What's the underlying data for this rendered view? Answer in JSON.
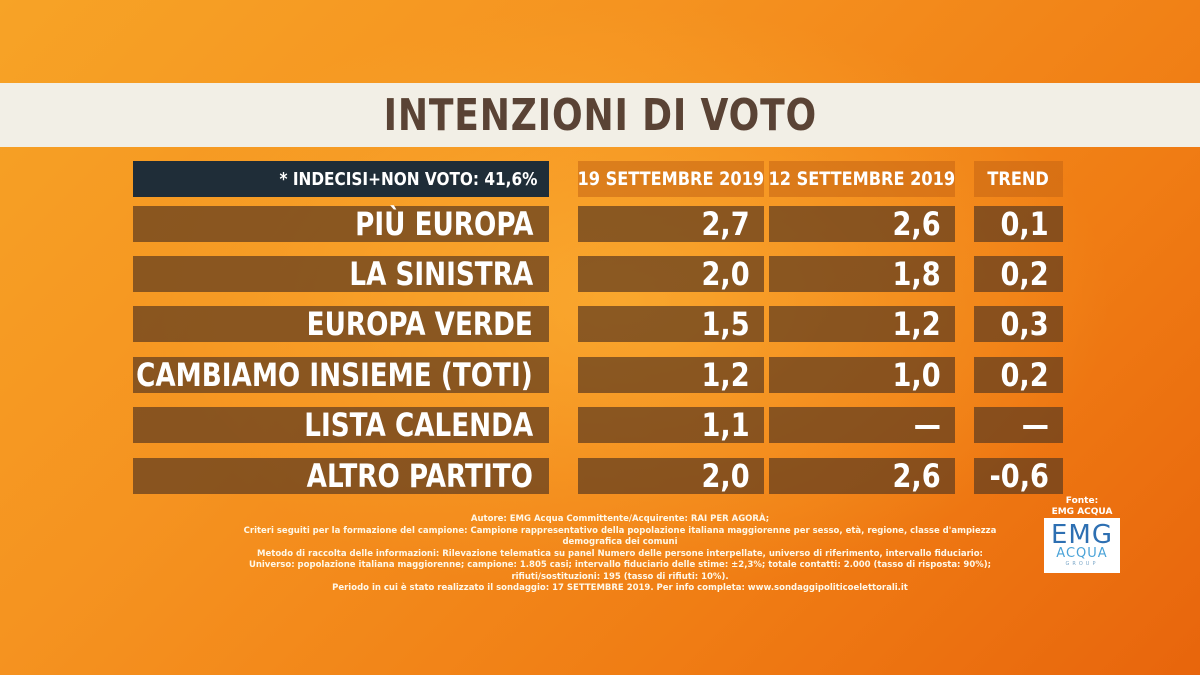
{
  "title": "INTENZIONI DI VOTO",
  "note": "* INDECISI+NON VOTO: 41,6%",
  "columns": [
    "19 SETTEMBRE 2019",
    "12 SETTEMBRE 2019",
    "TREND"
  ],
  "rows": [
    {
      "party": "PIÙ EUROPA",
      "v19": "2,7",
      "v12": "2,6",
      "trend": "0,1"
    },
    {
      "party": "LA SINISTRA",
      "v19": "2,0",
      "v12": "1,8",
      "trend": "0,2"
    },
    {
      "party": "EUROPA VERDE",
      "v19": "1,5",
      "v12": "1,2",
      "trend": "0,3"
    },
    {
      "party": "CAMBIAMO INSIEME (TOTI)",
      "v19": "1,2",
      "v12": "1,0",
      "trend": "0,2"
    },
    {
      "party": "LISTA CALENDA",
      "v19": "1,1",
      "v12": "—",
      "trend": "—"
    },
    {
      "party": "ALTRO PARTITO",
      "v19": "2,0",
      "v12": "2,6",
      "trend": "-0,6"
    }
  ],
  "footnotes": [
    "Autore: EMG Acqua Committente/Acquirente: RAI PER AGORÀ;",
    "Criteri seguiti per la formazione del campione: Campione rappresentativo della popolazione italiana maggiorenne per sesso, età, regione, classe d'ampiezza demografica dei comuni",
    "Metodo di raccolta delle informazioni: Rilevazione telematica su panel Numero delle persone interpellate, universo di riferimento, intervallo fiduciario:",
    "Universo: popolazione italiana maggiorenne; campione: 1.805 casi; intervallo fiduciario delle stime: ±2,3%; totale contatti: 2.000 (tasso di risposta: 90%); rifiuti/sostituzioni: 195 (tasso di rifiuti: 10%).",
    "Periodo in cui è stato realizzato il sondaggio: 17 SETTEMBRE 2019. Per info completa: www.sondaggipoliticoelettorali.it"
  ],
  "source": {
    "label": "Fonte:",
    "name": "EMG ACQUA GROUP"
  },
  "logo": {
    "line1": "EMG",
    "line2": "ACQUA",
    "line3": "GROUP"
  }
}
